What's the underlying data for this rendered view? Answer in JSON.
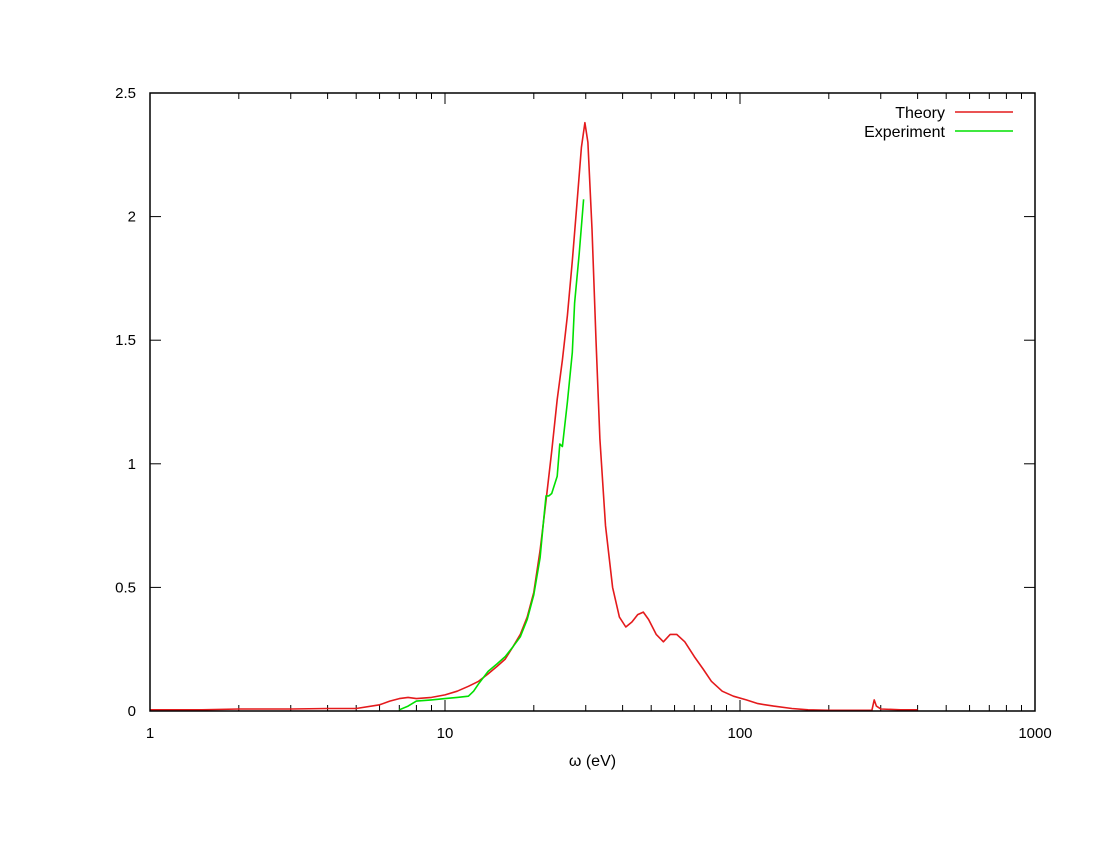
{
  "chart_data": {
    "type": "line",
    "xlabel": "ω (eV)",
    "ylabel": "",
    "xscale": "log",
    "xlim": [
      1,
      1000
    ],
    "ylim": [
      0,
      2.5
    ],
    "x_ticks": [
      1,
      10,
      100,
      1000
    ],
    "x_tick_labels": [
      "1",
      "10",
      "100",
      "1000"
    ],
    "y_ticks": [
      0,
      0.5,
      1,
      1.5,
      2,
      2.5
    ],
    "y_tick_labels": [
      "0",
      "0.5",
      "1",
      "1.5",
      "2",
      "2.5"
    ],
    "grid": false,
    "legend_position": "top-right",
    "series": [
      {
        "name": "Theory",
        "color": "#e41a1c",
        "points": [
          [
            1.0,
            0.005
          ],
          [
            1.5,
            0.005
          ],
          [
            2.0,
            0.008
          ],
          [
            3.0,
            0.008
          ],
          [
            4.0,
            0.01
          ],
          [
            5.0,
            0.01
          ],
          [
            6.0,
            0.025
          ],
          [
            6.5,
            0.04
          ],
          [
            7.0,
            0.05
          ],
          [
            7.5,
            0.055
          ],
          [
            8.0,
            0.05
          ],
          [
            9.0,
            0.055
          ],
          [
            10.0,
            0.065
          ],
          [
            11.0,
            0.08
          ],
          [
            12.0,
            0.1
          ],
          [
            13.0,
            0.12
          ],
          [
            14.0,
            0.15
          ],
          [
            15.0,
            0.18
          ],
          [
            16.0,
            0.21
          ],
          [
            17.0,
            0.26
          ],
          [
            18.0,
            0.31
          ],
          [
            19.0,
            0.38
          ],
          [
            20.0,
            0.48
          ],
          [
            21.0,
            0.65
          ],
          [
            22.0,
            0.85
          ],
          [
            23.0,
            1.05
          ],
          [
            24.0,
            1.26
          ],
          [
            25.0,
            1.42
          ],
          [
            26.0,
            1.6
          ],
          [
            27.0,
            1.82
          ],
          [
            28.0,
            2.05
          ],
          [
            29.0,
            2.28
          ],
          [
            29.8,
            2.38
          ],
          [
            30.5,
            2.3
          ],
          [
            31.5,
            1.95
          ],
          [
            32.5,
            1.5
          ],
          [
            33.5,
            1.1
          ],
          [
            35.0,
            0.75
          ],
          [
            37.0,
            0.5
          ],
          [
            39.0,
            0.38
          ],
          [
            41.0,
            0.34
          ],
          [
            43.0,
            0.36
          ],
          [
            45.0,
            0.39
          ],
          [
            47.0,
            0.4
          ],
          [
            49.0,
            0.37
          ],
          [
            52.0,
            0.31
          ],
          [
            55.0,
            0.28
          ],
          [
            58.0,
            0.31
          ],
          [
            61.0,
            0.31
          ],
          [
            65.0,
            0.28
          ],
          [
            70.0,
            0.22
          ],
          [
            75.0,
            0.17
          ],
          [
            80.0,
            0.12
          ],
          [
            87.0,
            0.08
          ],
          [
            95.0,
            0.06
          ],
          [
            105.0,
            0.045
          ],
          [
            115.0,
            0.03
          ],
          [
            130.0,
            0.02
          ],
          [
            150.0,
            0.01
          ],
          [
            170.0,
            0.005
          ],
          [
            200.0,
            0.003
          ],
          [
            250.0,
            0.003
          ],
          [
            280.0,
            0.003
          ],
          [
            285.0,
            0.045
          ],
          [
            290.0,
            0.02
          ],
          [
            300.0,
            0.008
          ],
          [
            350.0,
            0.005
          ],
          [
            400.0,
            0.005
          ]
        ]
      },
      {
        "name": "Experiment",
        "color": "#00e000",
        "points": [
          [
            7.0,
            0.005
          ],
          [
            7.5,
            0.02
          ],
          [
            8.0,
            0.04
          ],
          [
            9.0,
            0.045
          ],
          [
            10.0,
            0.05
          ],
          [
            11.0,
            0.055
          ],
          [
            12.0,
            0.06
          ],
          [
            12.5,
            0.08
          ],
          [
            13.0,
            0.11
          ],
          [
            14.0,
            0.16
          ],
          [
            15.0,
            0.19
          ],
          [
            16.0,
            0.22
          ],
          [
            17.0,
            0.26
          ],
          [
            18.0,
            0.3
          ],
          [
            19.0,
            0.37
          ],
          [
            20.0,
            0.47
          ],
          [
            21.0,
            0.62
          ],
          [
            21.5,
            0.75
          ],
          [
            22.0,
            0.87
          ],
          [
            22.5,
            0.87
          ],
          [
            23.0,
            0.88
          ],
          [
            24.0,
            0.95
          ],
          [
            24.5,
            1.08
          ],
          [
            25.0,
            1.07
          ],
          [
            26.0,
            1.25
          ],
          [
            27.0,
            1.45
          ],
          [
            27.5,
            1.65
          ],
          [
            28.5,
            1.85
          ],
          [
            29.5,
            2.07
          ]
        ]
      }
    ]
  }
}
